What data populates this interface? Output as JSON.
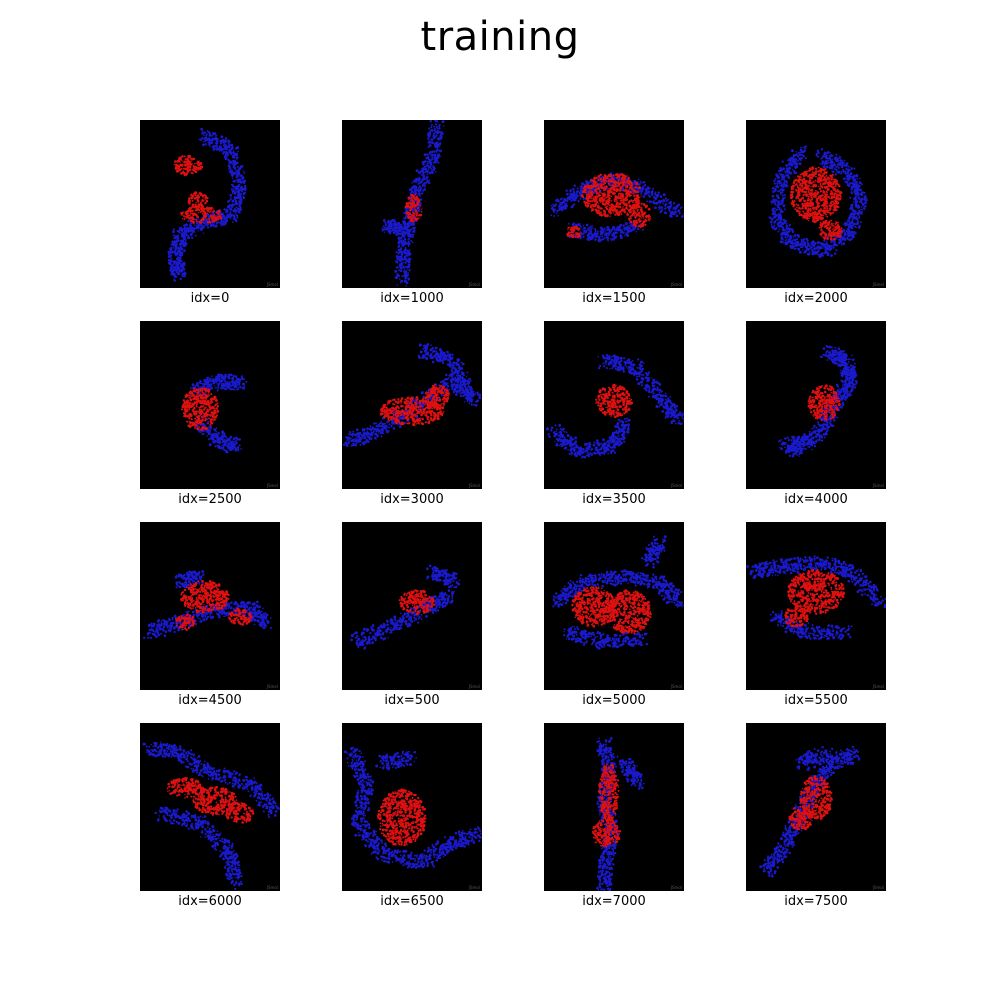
{
  "figure": {
    "title": "training"
  },
  "colors": {
    "background": "#000000",
    "protein_primary": "#1a1acc",
    "protein_ligand": "#dd1111"
  },
  "panels": [
    {
      "label": "idx=0",
      "watermark": "JSmol"
    },
    {
      "label": "idx=1000",
      "watermark": "JSmol"
    },
    {
      "label": "idx=1500",
      "watermark": "JSmol"
    },
    {
      "label": "idx=2000",
      "watermark": "JSmol"
    },
    {
      "label": "idx=2500",
      "watermark": "JSmol"
    },
    {
      "label": "idx=3000",
      "watermark": "JSmol"
    },
    {
      "label": "idx=3500",
      "watermark": "JSmol"
    },
    {
      "label": "idx=4000",
      "watermark": "JSmol"
    },
    {
      "label": "idx=4500",
      "watermark": "JSmol"
    },
    {
      "label": "idx=500",
      "watermark": "JSmol"
    },
    {
      "label": "idx=5000",
      "watermark": "JSmol"
    },
    {
      "label": "idx=5500",
      "watermark": "JSmol"
    },
    {
      "label": "idx=6000",
      "watermark": "JSmol"
    },
    {
      "label": "idx=6500",
      "watermark": "JSmol"
    },
    {
      "label": "idx=7000",
      "watermark": "JSmol"
    },
    {
      "label": "idx=7500",
      "watermark": "JSmol"
    }
  ]
}
